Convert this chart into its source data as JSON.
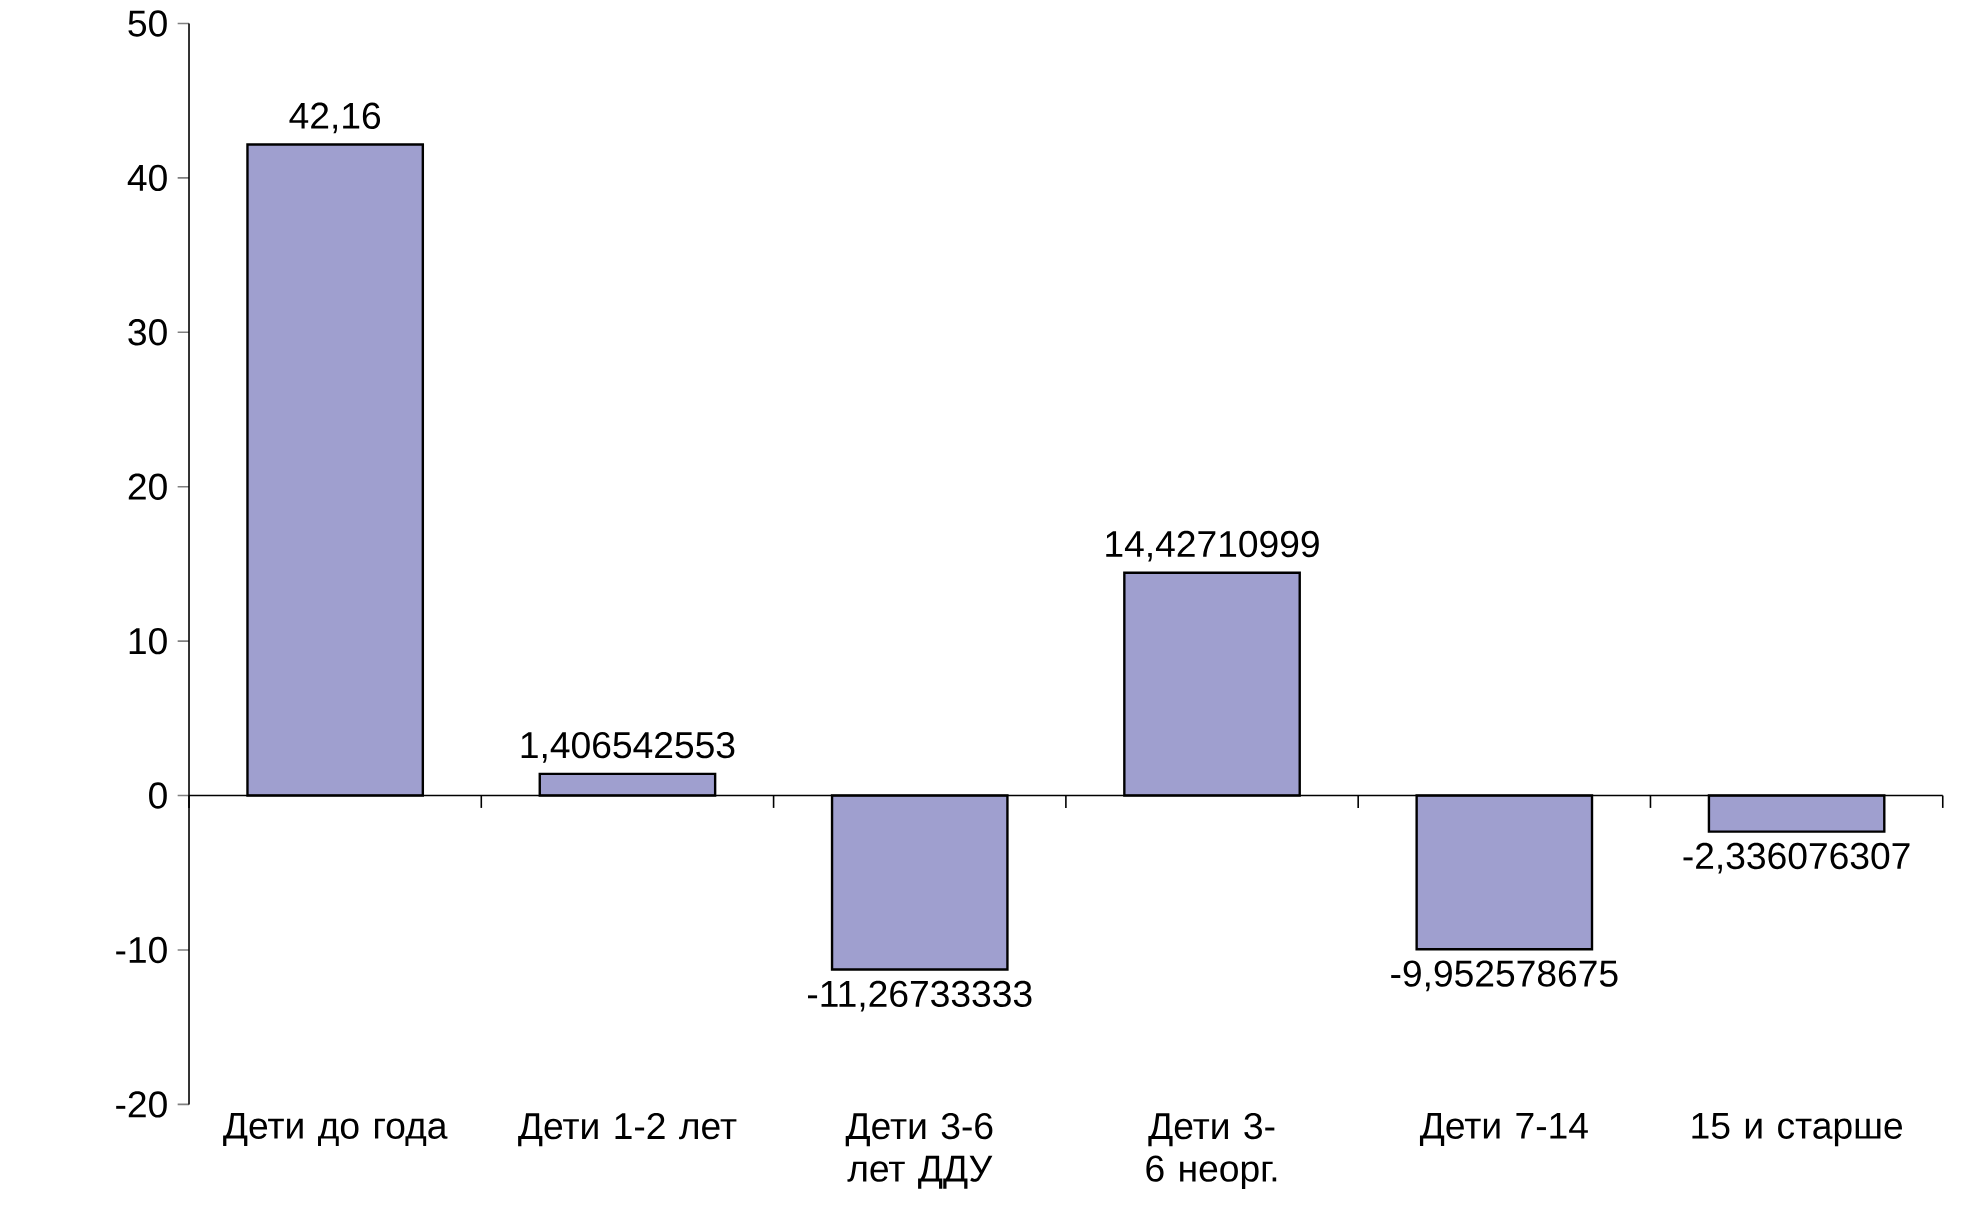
{
  "chart_data": {
    "type": "bar",
    "categories": [
      "Дети до года",
      "Дети 1-2 лет",
      "Дети 3-6 лет ДДУ",
      "Дети 3-6 неорг.",
      "Дети 7-14",
      "15 и старше"
    ],
    "values": [
      42.16,
      1.406542553,
      -11.26733333,
      14.42710999,
      -9.952578675,
      -2.336076307
    ],
    "value_labels": [
      "42,16",
      "1,406542553",
      "-11,26733333",
      "14,42710999",
      "-9,952578675",
      "-2,336076307"
    ],
    "color": "#9f9fcf",
    "ylim": [
      -20,
      50
    ],
    "yticks": [
      -20,
      -10,
      0,
      10,
      20,
      30,
      40,
      50
    ]
  }
}
